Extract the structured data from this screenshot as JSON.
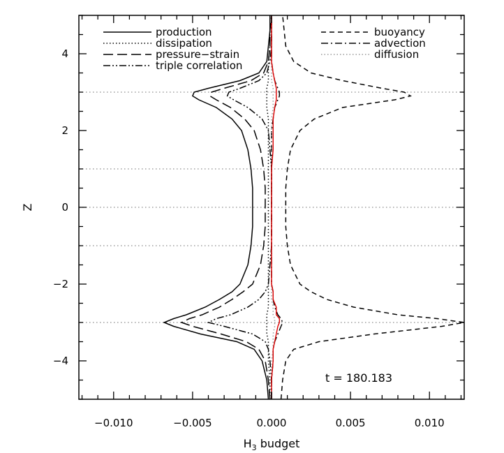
{
  "chart_data": {
    "type": "line",
    "title": "",
    "xlabel": "H",
    "xlabel_sub": "3",
    "xlabel_rest": " budget",
    "ylabel": "Z",
    "xlim": [
      -0.0122,
      0.0122
    ],
    "ylim": [
      -5,
      5
    ],
    "x_ticks": [
      -0.01,
      -0.005,
      0.0,
      0.005,
      0.01
    ],
    "x_tick_labels": [
      "−0.010",
      "−0.005",
      "0.000",
      "0.005",
      "0.010"
    ],
    "y_ticks": [
      -4,
      -2,
      0,
      2,
      4
    ],
    "y_tick_labels": [
      "−4",
      "−2",
      "0",
      "2",
      "4"
    ],
    "grid": "horizontal dotted at z = -3, -1, 1, 3 and 0",
    "legend_position": "top, two columns",
    "annotation": "t = 180.183",
    "legend": {
      "left": [
        "production",
        "dissipation",
        "pressure−strain",
        "triple correlation"
      ],
      "right": [
        "buoyancy",
        "advection",
        "diffusion"
      ]
    },
    "z": [
      -5.0,
      -4.5,
      -4.0,
      -3.7,
      -3.5,
      -3.3,
      -3.1,
      -3.0,
      -2.9,
      -2.8,
      -2.6,
      -2.4,
      -2.2,
      -2.0,
      -1.5,
      -1.0,
      -0.5,
      0.0,
      0.5,
      1.0,
      1.5,
      2.0,
      2.3,
      2.6,
      2.8,
      2.9,
      3.0,
      3.1,
      3.3,
      3.5,
      3.8,
      4.2,
      4.6,
      5.0
    ],
    "series": [
      {
        "name": "production",
        "color": "#000000",
        "dash": "solid",
        "values": [
          -0.0002,
          -0.0003,
          -0.0006,
          -0.0011,
          -0.0022,
          -0.0045,
          -0.0062,
          -0.0068,
          -0.0062,
          -0.0054,
          -0.0042,
          -0.0033,
          -0.0025,
          -0.002,
          -0.0015,
          -0.0013,
          -0.0012,
          -0.0012,
          -0.0012,
          -0.0013,
          -0.0015,
          -0.0019,
          -0.0025,
          -0.0035,
          -0.0046,
          -0.005,
          -0.0049,
          -0.004,
          -0.002,
          -0.0008,
          -0.0003,
          -0.0002,
          -0.0001,
          -0.0001
        ]
      },
      {
        "name": "dissipation",
        "color": "#000000",
        "dash": "dotted",
        "values": [
          -0.0001,
          -0.0001,
          -0.0002,
          -0.0002,
          -0.0002,
          -0.0003,
          -0.0003,
          -0.0003,
          -0.0003,
          -0.0003,
          -0.0002,
          -0.0002,
          -0.0002,
          -0.0002,
          -0.0002,
          -0.0002,
          -0.0002,
          -0.0002,
          -0.0002,
          -0.0002,
          -0.0002,
          -0.0002,
          -0.0002,
          -0.0003,
          -0.0003,
          -0.0003,
          -0.0003,
          -0.0003,
          -0.0002,
          -0.0002,
          -0.0002,
          -0.0001,
          -0.0001,
          -0.0001
        ]
      },
      {
        "name": "pressure−strain",
        "color": "#000000",
        "dash": "longdash",
        "values": [
          -0.0001,
          -0.0002,
          -0.0004,
          -0.0008,
          -0.0016,
          -0.0032,
          -0.005,
          -0.0057,
          -0.0052,
          -0.0044,
          -0.0033,
          -0.0025,
          -0.0018,
          -0.0012,
          -0.0007,
          -0.0005,
          -0.0004,
          -0.0004,
          -0.0004,
          -0.0005,
          -0.0007,
          -0.0011,
          -0.0017,
          -0.0026,
          -0.0035,
          -0.0039,
          -0.0038,
          -0.003,
          -0.0013,
          -0.0005,
          -0.0002,
          -0.0001,
          -0.0001,
          0.0
        ]
      },
      {
        "name": "triple correlation",
        "color": "#000000",
        "dash": "dashdotdot",
        "values": [
          0.0,
          0.0,
          -0.0001,
          -0.0002,
          -0.0004,
          -0.0012,
          -0.003,
          -0.004,
          -0.0035,
          -0.0026,
          -0.0015,
          -0.0008,
          -0.0004,
          -0.0002,
          -0.0001,
          0.0,
          0.0,
          0.0,
          0.0,
          0.0,
          -0.0001,
          -0.0002,
          -0.0006,
          -0.0015,
          -0.0024,
          -0.0028,
          -0.0027,
          -0.002,
          -0.0008,
          -0.0003,
          -0.0001,
          0.0,
          0.0,
          0.0
        ]
      },
      {
        "name": "buoyancy",
        "color": "#000000",
        "dash": "shortdash",
        "values": [
          0.0006,
          0.0007,
          0.0009,
          0.0014,
          0.003,
          0.0065,
          0.0108,
          0.0122,
          0.0105,
          0.008,
          0.0052,
          0.0035,
          0.0025,
          0.0018,
          0.0012,
          0.001,
          0.0009,
          0.0009,
          0.0009,
          0.001,
          0.0012,
          0.0018,
          0.0027,
          0.0045,
          0.0078,
          0.0088,
          0.0084,
          0.007,
          0.0045,
          0.0025,
          0.0014,
          0.0009,
          0.0008,
          0.0007
        ]
      },
      {
        "name": "advection",
        "color": "#000000",
        "dash": "dashdot",
        "values": [
          0.0,
          0.0,
          0.0001,
          0.0001,
          0.0002,
          0.0004,
          0.0006,
          0.0007,
          0.0006,
          0.0004,
          0.0002,
          0.0001,
          0.0001,
          0.0,
          0.0,
          0.0,
          0.0,
          0.0,
          0.0,
          0.0,
          0.0,
          0.0,
          0.0001,
          0.0002,
          0.0004,
          0.0005,
          0.0005,
          0.0004,
          0.0002,
          0.0001,
          0.0,
          0.0,
          0.0,
          0.0
        ]
      },
      {
        "name": "diffusion",
        "color": "#999999",
        "dash": "dotted",
        "values": [
          0.0,
          0.0,
          0.0,
          0.0001,
          0.0001,
          0.0001,
          0.0002,
          0.0002,
          0.0002,
          0.0001,
          0.0001,
          0.0,
          0.0,
          0.0,
          0.0,
          0.0,
          0.0,
          0.0,
          0.0,
          0.0,
          0.0,
          0.0,
          0.0,
          0.0001,
          0.0001,
          0.0001,
          0.0001,
          0.0001,
          0.0,
          0.0,
          0.0,
          0.0,
          0.0,
          0.0
        ]
      },
      {
        "color": "#dd0000",
        "dash": "solid",
        "values": [
          0.0,
          0.0,
          0.0001,
          0.0001,
          0.0002,
          0.0003,
          0.0004,
          0.0005,
          0.0005,
          0.0003,
          0.0003,
          0.0001,
          0.0001,
          0.0,
          0.0,
          0.0,
          0.0,
          0.0,
          0.0,
          0.0,
          0.0001,
          0.0001,
          0.0001,
          0.0002,
          0.0003,
          0.0003,
          0.0003,
          0.0003,
          0.0002,
          0.0001,
          0.0,
          0.0,
          0.0,
          0.0
        ]
      }
    ]
  }
}
